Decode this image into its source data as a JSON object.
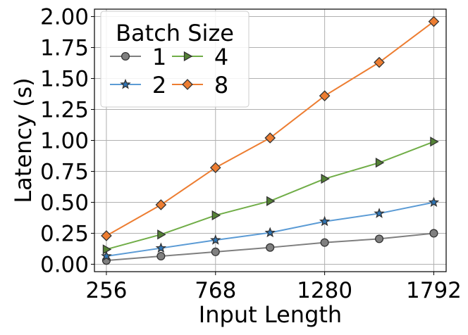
{
  "chart_data": {
    "type": "line",
    "xlabel": "Input Length",
    "ylabel": "Latency (s)",
    "x": [
      256,
      512,
      768,
      1024,
      1280,
      1536,
      1792
    ],
    "x_ticks": [
      "256",
      "768",
      "1280",
      "1792"
    ],
    "x_tick_values": [
      256,
      768,
      1280,
      1792
    ],
    "y_ticks": [
      "0.00",
      "0.25",
      "0.50",
      "0.75",
      "1.00",
      "1.25",
      "1.50",
      "1.75",
      "2.00"
    ],
    "y_tick_values": [
      0,
      0.25,
      0.5,
      0.75,
      1.0,
      1.25,
      1.5,
      1.75,
      2.0
    ],
    "xlim": [
      200,
      1850
    ],
    "ylim": [
      -0.06,
      2.06
    ],
    "grid": true,
    "legend": {
      "title": "Batch Size",
      "placement": "top-left",
      "columns": 2
    },
    "series": [
      {
        "name": "1",
        "values": [
          0.03,
          0.065,
          0.1,
          0.135,
          0.175,
          0.205,
          0.25
        ],
        "color": "#7f7f7f",
        "marker": "circle",
        "marker_fill": "#808080"
      },
      {
        "name": "2",
        "values": [
          0.065,
          0.13,
          0.195,
          0.255,
          0.345,
          0.41,
          0.5
        ],
        "color": "#5b9bd5",
        "marker": "star",
        "marker_fill": "#2e75b6"
      },
      {
        "name": "4",
        "values": [
          0.12,
          0.24,
          0.395,
          0.51,
          0.69,
          0.82,
          0.99
        ],
        "color": "#70ad47",
        "marker": "triangle-right",
        "marker_fill": "#548235"
      },
      {
        "name": "8",
        "values": [
          0.23,
          0.48,
          0.78,
          1.02,
          1.36,
          1.63,
          1.96
        ],
        "color": "#ed7d31",
        "marker": "diamond",
        "marker_fill": "#ed7d31"
      }
    ]
  }
}
